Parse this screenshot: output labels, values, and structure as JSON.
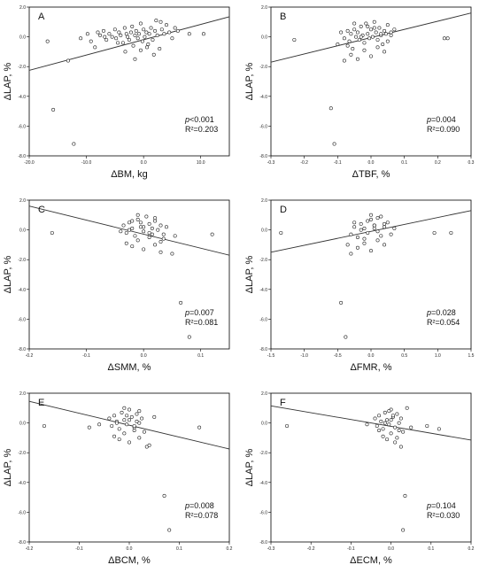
{
  "chart_data": [
    {
      "type": "scatter",
      "panel": "A",
      "xlabel": "ΔBM, kg",
      "ylabel": "ΔLAP, %",
      "xlim": [
        -20,
        15
      ],
      "ylim": [
        -8,
        2
      ],
      "xticks": [
        -20,
        -10,
        0,
        10
      ],
      "xtick_labels": [
        "-20.0",
        "-10.0",
        "0.0",
        "10.0"
      ],
      "yticks": [
        -8,
        -6,
        -4,
        -2,
        0,
        2
      ],
      "ytick_labels": [
        "-8.0",
        "-6.0",
        "-4.0",
        "-2.0",
        "0.0",
        "2.0"
      ],
      "stats": {
        "p_prefix": "p",
        "p_value": "<0.001",
        "r2": "R²=0.203"
      },
      "fit": {
        "x": [
          -20,
          15
        ],
        "y": [
          -2.25,
          1.35
        ]
      },
      "points": {
        "x": [
          -16.8,
          -15.8,
          -12.2,
          -13.2,
          -11.0,
          -9.8,
          -9.2,
          -8.5,
          -8.0,
          -7.6,
          -7.0,
          -6.5,
          -6.0,
          -5.5,
          -5.0,
          -4.8,
          -4.3,
          -4.0,
          -3.6,
          -3.3,
          -3.0,
          -2.8,
          -2.5,
          -2.2,
          -2.0,
          -1.8,
          -1.5,
          -1.3,
          -1.0,
          -0.8,
          -0.5,
          -0.2,
          0.0,
          0.2,
          0.5,
          0.8,
          1.0,
          1.3,
          1.6,
          2.0,
          2.4,
          2.8,
          3.2,
          3.6,
          4.0,
          4.5,
          5.0,
          5.5,
          6.0,
          -3.2,
          -1.5,
          -0.5,
          1.8,
          3.0,
          -6.8,
          -4.5,
          0.6,
          2.2,
          8.0,
          10.5
        ],
        "y": [
          -0.3,
          -4.9,
          -7.2,
          -1.6,
          -0.1,
          0.2,
          -0.3,
          -0.7,
          0.3,
          0.1,
          0.4,
          -0.2,
          0.2,
          0.0,
          0.5,
          -0.1,
          0.3,
          0.1,
          -0.4,
          0.6,
          0.2,
          0.0,
          -0.2,
          0.3,
          0.7,
          -0.6,
          0.1,
          0.4,
          -0.1,
          0.2,
          0.9,
          -0.3,
          0.5,
          0.0,
          0.3,
          -0.5,
          0.2,
          0.6,
          -0.2,
          0.4,
          0.1,
          -0.8,
          0.5,
          0.2,
          0.8,
          0.3,
          -0.1,
          0.6,
          0.4,
          -1.0,
          -1.5,
          -0.9,
          -1.2,
          1.0,
          0.0,
          -0.4,
          -0.7,
          1.1,
          0.2,
          0.2
        ]
      }
    },
    {
      "type": "scatter",
      "panel": "B",
      "xlabel": "ΔTBF, %",
      "ylabel": "ΔLAP, %",
      "xlim": [
        -0.3,
        0.3
      ],
      "ylim": [
        -8,
        2
      ],
      "xticks": [
        -0.3,
        -0.2,
        -0.1,
        0.0,
        0.1,
        0.2,
        0.3
      ],
      "xtick_labels": [
        "-0.3",
        "-0.2",
        "-0.1",
        "0.0",
        "0.1",
        "0.2",
        "0.3"
      ],
      "yticks": [
        -8,
        -6,
        -4,
        -2,
        0,
        2
      ],
      "ytick_labels": [
        "-8.0",
        "-6.0",
        "-4.0",
        "-2.0",
        "0.0",
        "2.0"
      ],
      "stats": {
        "p_prefix": "p",
        "p_value": "=0.004",
        "r2": "R²=0.090"
      },
      "fit": {
        "x": [
          -0.3,
          0.3
        ],
        "y": [
          -1.7,
          1.6
        ]
      },
      "points": {
        "x": [
          -0.23,
          -0.12,
          -0.11,
          -0.1,
          -0.09,
          -0.08,
          -0.07,
          -0.065,
          -0.06,
          -0.055,
          -0.05,
          -0.045,
          -0.04,
          -0.035,
          -0.03,
          -0.025,
          -0.02,
          -0.015,
          -0.01,
          -0.005,
          0.0,
          0.005,
          0.01,
          0.015,
          0.02,
          0.025,
          0.03,
          0.035,
          0.04,
          0.045,
          0.05,
          0.06,
          0.07,
          -0.06,
          -0.04,
          -0.02,
          0.0,
          0.02,
          0.04,
          -0.08,
          -0.03,
          0.01,
          0.05,
          0.22,
          0.23,
          -0.05,
          -0.01,
          0.03,
          -0.07,
          0.06
        ],
        "y": [
          -0.2,
          -4.8,
          -7.2,
          -0.5,
          0.3,
          -0.1,
          0.4,
          -0.3,
          0.2,
          -0.8,
          0.5,
          0.0,
          0.3,
          -0.2,
          0.7,
          0.1,
          -0.4,
          0.9,
          0.2,
          -0.1,
          0.5,
          0.0,
          1.0,
          0.3,
          -0.2,
          0.6,
          0.1,
          -0.5,
          0.4,
          0.2,
          0.8,
          0.3,
          0.5,
          -1.2,
          -1.5,
          -0.9,
          -1.3,
          -0.7,
          -1.0,
          -1.6,
          0.0,
          0.6,
          -0.3,
          -0.1,
          -0.1,
          0.9,
          0.7,
          0.2,
          -0.6,
          0.1
        ]
      }
    },
    {
      "type": "scatter",
      "panel": "C",
      "xlabel": "ΔSMM, %",
      "ylabel": "ΔLAP, %",
      "xlim": [
        -0.2,
        0.15
      ],
      "ylim": [
        -8,
        2
      ],
      "xticks": [
        -0.2,
        -0.1,
        0.0,
        0.1
      ],
      "xtick_labels": [
        "-0.2",
        "-0.1",
        "0.0",
        "0.1"
      ],
      "yticks": [
        -8,
        -6,
        -4,
        -2,
        0,
        2
      ],
      "ytick_labels": [
        "-8.0",
        "-6.0",
        "-4.0",
        "-2.0",
        "0.0",
        "2.0"
      ],
      "stats": {
        "p_prefix": "p",
        "p_value": "=0.007",
        "r2": "R²=0.081"
      },
      "fit": {
        "x": [
          -0.2,
          0.15
        ],
        "y": [
          1.6,
          -1.7
        ]
      },
      "points": {
        "x": [
          -0.16,
          -0.04,
          -0.035,
          -0.03,
          -0.025,
          -0.02,
          -0.015,
          -0.01,
          -0.005,
          0.0,
          0.005,
          0.01,
          0.015,
          0.02,
          0.025,
          0.03,
          0.035,
          0.04,
          -0.03,
          -0.02,
          -0.01,
          0.0,
          0.01,
          0.02,
          0.03,
          -0.025,
          -0.005,
          0.015,
          0.035,
          0.05,
          0.055,
          0.065,
          0.08,
          0.12,
          -0.01,
          0.01,
          0.0,
          0.02,
          -0.02,
          0.03
        ],
        "y": [
          -0.2,
          -0.1,
          0.3,
          -0.2,
          0.5,
          0.1,
          -0.4,
          0.7,
          0.2,
          -0.1,
          0.9,
          0.4,
          -0.3,
          0.6,
          0.0,
          0.3,
          -0.6,
          0.2,
          -0.9,
          -1.1,
          -0.7,
          -1.3,
          -0.5,
          -1.0,
          -0.8,
          0.0,
          0.5,
          0.1,
          -0.3,
          -1.6,
          -0.4,
          -4.9,
          -7.2,
          -0.3,
          1.0,
          -0.2,
          0.2,
          0.8,
          0.6,
          -1.5
        ]
      }
    },
    {
      "type": "scatter",
      "panel": "D",
      "xlabel": "ΔFMR, %",
      "ylabel": "ΔLAP, %",
      "xlim": [
        -1.5,
        1.5
      ],
      "ylim": [
        -8,
        2
      ],
      "xticks": [
        -1.5,
        -1.0,
        -0.5,
        0.0,
        0.5,
        1.0,
        1.5
      ],
      "xtick_labels": [
        "-1.5",
        "-1.0",
        "-0.5",
        "0.0",
        "0.5",
        "1.0",
        "1.5"
      ],
      "yticks": [
        -8,
        -6,
        -4,
        -2,
        0,
        2
      ],
      "ytick_labels": [
        "-8.0",
        "-6.0",
        "-4.0",
        "-2.0",
        "0.0",
        "2.0"
      ],
      "stats": {
        "p_prefix": "p",
        "p_value": "=0.028",
        "r2": "R²=0.054"
      },
      "fit": {
        "x": [
          -1.5,
          1.5
        ],
        "y": [
          -1.5,
          1.3
        ]
      },
      "points": {
        "x": [
          -1.35,
          -0.45,
          -0.38,
          -0.3,
          -0.25,
          -0.2,
          -0.15,
          -0.1,
          -0.05,
          0.0,
          0.05,
          0.1,
          0.15,
          0.2,
          0.25,
          -0.2,
          -0.1,
          0.0,
          0.1,
          0.2,
          -0.15,
          -0.05,
          0.05,
          0.15,
          -0.3,
          0.3,
          0.35,
          -0.25,
          0.0,
          0.1,
          0.95,
          1.2,
          -0.35,
          0.2,
          -0.1,
          0.05
        ],
        "y": [
          -0.2,
          -4.9,
          -7.2,
          -0.3,
          0.2,
          -0.5,
          0.4,
          0.1,
          -0.2,
          0.7,
          0.3,
          -0.1,
          0.9,
          0.2,
          0.5,
          -1.2,
          -0.9,
          -1.4,
          -0.7,
          -1.0,
          0.0,
          0.6,
          0.1,
          -0.4,
          -1.6,
          -0.3,
          0.1,
          0.5,
          1.0,
          0.8,
          -0.2,
          -0.2,
          -1.0,
          0.4,
          -0.6,
          0.3
        ]
      }
    },
    {
      "type": "scatter",
      "panel": "E",
      "xlabel": "ΔBCM, %",
      "ylabel": "ΔLAP, %",
      "xlim": [
        -0.2,
        0.2
      ],
      "ylim": [
        -8,
        2
      ],
      "xticks": [
        -0.2,
        -0.1,
        0.0,
        0.1,
        0.2
      ],
      "xtick_labels": [
        "-0.2",
        "-0.1",
        "0.0",
        "0.1",
        "0.2"
      ],
      "yticks": [
        -8,
        -6,
        -4,
        -2,
        0,
        2
      ],
      "ytick_labels": [
        "-8.0",
        "-6.0",
        "-4.0",
        "-2.0",
        "0.0",
        "2.0"
      ],
      "stats": {
        "p_prefix": "p",
        "p_value": "=0.008",
        "r2": "R²=0.078"
      },
      "fit": {
        "x": [
          -0.2,
          0.2
        ],
        "y": [
          1.45,
          -1.75
        ]
      },
      "points": {
        "x": [
          -0.17,
          -0.08,
          -0.06,
          -0.04,
          -0.035,
          -0.03,
          -0.025,
          -0.02,
          -0.015,
          -0.01,
          -0.005,
          0.0,
          0.005,
          0.01,
          0.015,
          0.02,
          0.025,
          0.03,
          -0.03,
          -0.02,
          -0.01,
          0.0,
          0.01,
          0.02,
          -0.025,
          -0.005,
          0.015,
          0.035,
          0.04,
          0.05,
          0.07,
          0.08,
          0.14,
          -0.01,
          0.01,
          0.0,
          0.02
        ],
        "y": [
          -0.2,
          -0.3,
          -0.1,
          0.3,
          -0.2,
          0.5,
          0.1,
          -0.4,
          0.7,
          0.2,
          -0.1,
          0.9,
          0.4,
          -0.3,
          0.6,
          0.0,
          0.3,
          -0.6,
          -0.9,
          -1.1,
          -0.7,
          -1.3,
          -0.5,
          -1.0,
          0.0,
          0.5,
          0.1,
          -1.6,
          -1.5,
          0.4,
          -4.9,
          -7.2,
          -0.3,
          1.0,
          -0.2,
          0.2,
          0.8
        ]
      }
    },
    {
      "type": "scatter",
      "panel": "F",
      "xlabel": "ΔECM, %",
      "ylabel": "ΔLAP, %",
      "xlim": [
        -0.3,
        0.2
      ],
      "ylim": [
        -8,
        2
      ],
      "xticks": [
        -0.3,
        -0.2,
        -0.1,
        0.0,
        0.1,
        0.2
      ],
      "xtick_labels": [
        "-0.3",
        "-0.2",
        "-0.1",
        "0.0",
        "0.1",
        "0.2"
      ],
      "yticks": [
        -8,
        -6,
        -4,
        -2,
        0,
        2
      ],
      "ytick_labels": [
        "-8.0",
        "-6.0",
        "-4.0",
        "-2.0",
        "0.0",
        "2.0"
      ],
      "stats": {
        "p_prefix": "p",
        "p_value": "=0.104",
        "r2": "R²=0.030"
      },
      "fit": {
        "x": [
          -0.3,
          0.2
        ],
        "y": [
          1.15,
          -1.15
        ]
      },
      "points": {
        "x": [
          -0.26,
          -0.06,
          -0.04,
          -0.035,
          -0.03,
          -0.025,
          -0.02,
          -0.015,
          -0.01,
          -0.005,
          0.0,
          0.005,
          0.01,
          0.015,
          0.02,
          0.025,
          0.03,
          -0.02,
          -0.01,
          0.0,
          0.01,
          0.02,
          -0.015,
          0.005,
          0.025,
          0.03,
          0.035,
          0.04,
          0.05,
          0.09,
          0.12,
          -0.005,
          0.015,
          0.0,
          -0.03
        ],
        "y": [
          -0.2,
          -0.1,
          0.3,
          -0.2,
          0.5,
          0.1,
          -0.4,
          0.7,
          0.2,
          -0.1,
          0.9,
          0.4,
          -0.3,
          0.6,
          0.0,
          0.3,
          -0.6,
          -0.9,
          -1.1,
          -0.7,
          -1.3,
          -0.5,
          0.0,
          0.5,
          -1.6,
          -7.2,
          -4.9,
          1.0,
          -0.3,
          -0.2,
          -0.4,
          0.8,
          -1.0,
          0.2,
          -0.5
        ]
      }
    }
  ]
}
